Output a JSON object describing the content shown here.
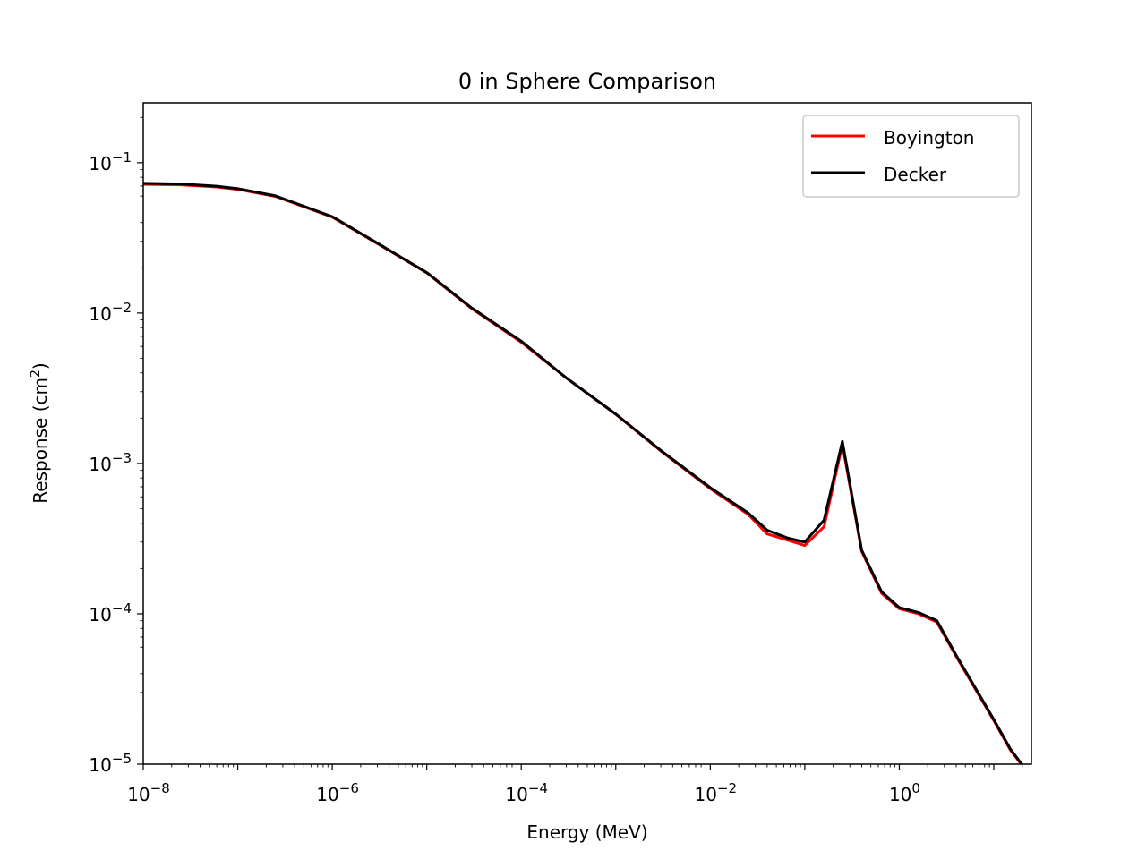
{
  "chart_data": {
    "type": "line",
    "title": "0 in Sphere Comparison",
    "xlabel": "Energy (MeV)",
    "ylabel": "Response (cm",
    "ylabel_sup": "2",
    "ylabel_close": ")",
    "xscale": "log",
    "yscale": "log",
    "xlim": [
      1e-08,
      25
    ],
    "ylim": [
      1e-05,
      0.25
    ],
    "grid": false,
    "legend_position": "top-right",
    "x_ticks": [
      {
        "value": 1e-08,
        "base": "10",
        "exp": "−8"
      },
      {
        "value": 1e-06,
        "base": "10",
        "exp": "−6"
      },
      {
        "value": 0.0001,
        "base": "10",
        "exp": "−4"
      },
      {
        "value": 0.01,
        "base": "10",
        "exp": "−2"
      },
      {
        "value": 1,
        "base": "10",
        "exp": "0"
      }
    ],
    "y_ticks": [
      {
        "value": 1e-05,
        "base": "10",
        "exp": "−5"
      },
      {
        "value": 0.0001,
        "base": "10",
        "exp": "−4"
      },
      {
        "value": 0.001,
        "base": "10",
        "exp": "−3"
      },
      {
        "value": 0.01,
        "base": "10",
        "exp": "−2"
      },
      {
        "value": 0.1,
        "base": "10",
        "exp": "−1"
      }
    ],
    "series": [
      {
        "name": "Boyington",
        "color": "#ff0000",
        "points": [
          [
            1e-08,
            0.0718
          ],
          [
            2.5e-08,
            0.0712
          ],
          [
            6e-08,
            0.0689
          ],
          [
            1e-07,
            0.0665
          ],
          [
            2.5e-07,
            0.0597
          ],
          [
            1e-06,
            0.0435
          ],
          [
            3e-06,
            0.029
          ],
          [
            1e-05,
            0.0185
          ],
          [
            3e-05,
            0.0107
          ],
          [
            0.0001,
            0.0064
          ],
          [
            0.0003,
            0.0037
          ],
          [
            0.001,
            0.00212
          ],
          [
            0.003,
            0.00121
          ],
          [
            0.01,
            0.00068
          ],
          [
            0.025,
            0.00046
          ],
          [
            0.04,
            0.00034
          ],
          [
            0.065,
            0.00031
          ],
          [
            0.1,
            0.000285
          ],
          [
            0.16,
            0.00038
          ],
          [
            0.25,
            0.00134
          ],
          [
            0.4,
            0.00026
          ],
          [
            0.65,
            0.000137
          ],
          [
            1,
            0.000108
          ],
          [
            1.6,
            0.0001
          ],
          [
            2.5,
            8.8e-05
          ],
          [
            4,
            5.2e-05
          ],
          [
            6.5,
            3.1e-05
          ],
          [
            10,
            1.95e-05
          ],
          [
            15,
            1.24e-05
          ],
          [
            20,
            9.8e-06
          ]
        ]
      },
      {
        "name": "Decker",
        "color": "#000000",
        "points": [
          [
            1e-08,
            0.073
          ],
          [
            2.5e-08,
            0.0722
          ],
          [
            6e-08,
            0.0698
          ],
          [
            1e-07,
            0.0672
          ],
          [
            2.5e-07,
            0.0602
          ],
          [
            1e-06,
            0.0438
          ],
          [
            3e-06,
            0.0292
          ],
          [
            1e-05,
            0.0186
          ],
          [
            3e-05,
            0.0108
          ],
          [
            0.0001,
            0.0065
          ],
          [
            0.0003,
            0.0037
          ],
          [
            0.001,
            0.00213
          ],
          [
            0.003,
            0.00122
          ],
          [
            0.01,
            0.00069
          ],
          [
            0.025,
            0.00047
          ],
          [
            0.04,
            0.00036
          ],
          [
            0.065,
            0.00032
          ],
          [
            0.1,
            0.0003
          ],
          [
            0.16,
            0.00042
          ],
          [
            0.25,
            0.0014
          ],
          [
            0.4,
            0.000265
          ],
          [
            0.65,
            0.00014
          ],
          [
            1,
            0.00011
          ],
          [
            1.6,
            0.000102
          ],
          [
            2.5,
            9e-05
          ],
          [
            4,
            5.3e-05
          ],
          [
            6.5,
            3.15e-05
          ],
          [
            10,
            1.98e-05
          ],
          [
            15,
            1.26e-05
          ],
          [
            20,
            9.9e-06
          ]
        ]
      }
    ]
  }
}
